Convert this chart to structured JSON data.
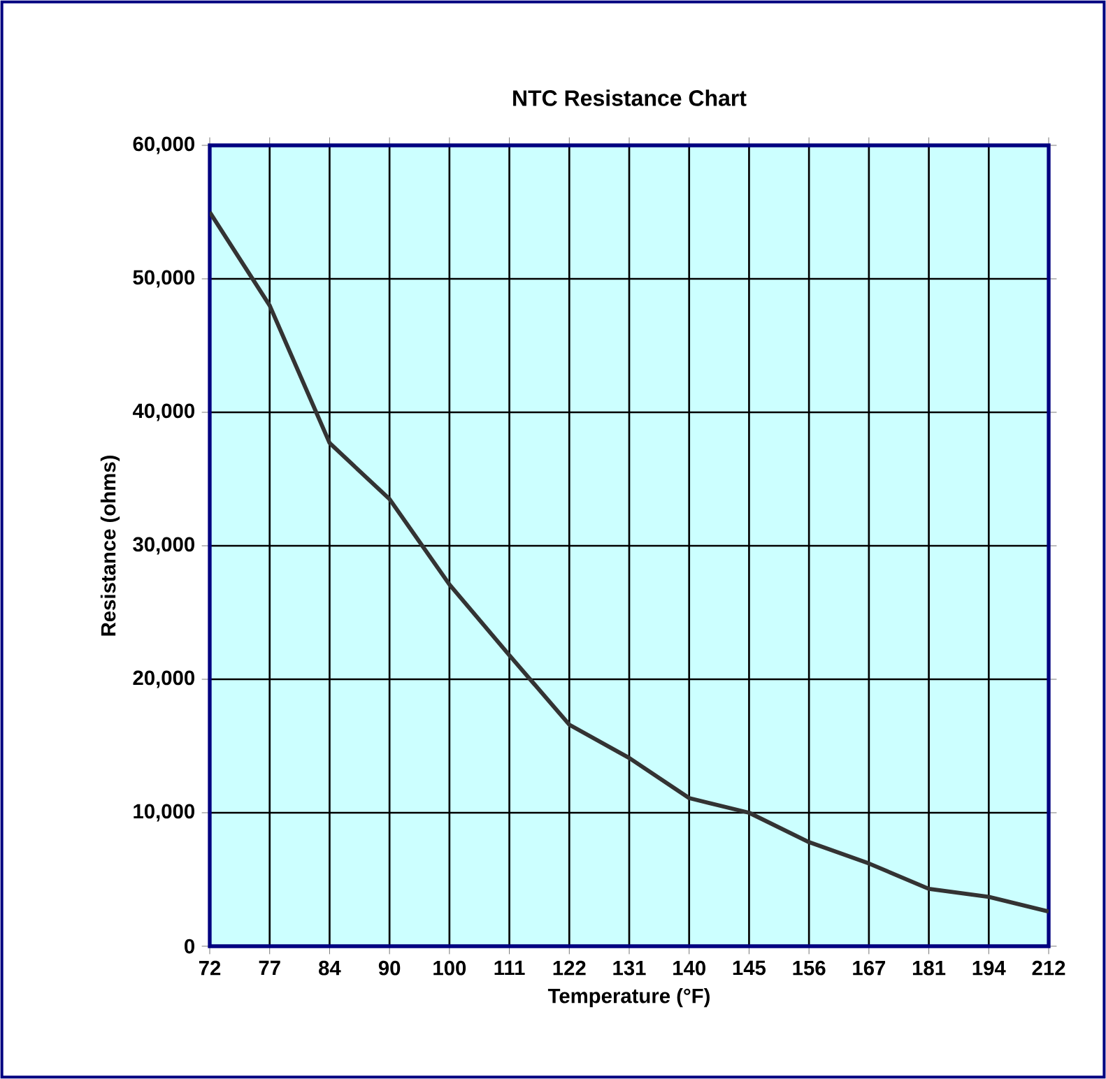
{
  "chart_data": {
    "type": "line",
    "title": "NTC Resistance Chart",
    "xlabel": "Temperature (°F)",
    "ylabel": "Resistance (ohms)",
    "categories": [
      "72",
      "77",
      "84",
      "90",
      "100",
      "111",
      "122",
      "131",
      "140",
      "145",
      "156",
      "167",
      "181",
      "194",
      "212"
    ],
    "series": [
      {
        "color": "#333333",
        "values": [
          55000,
          48000,
          37700,
          33500,
          27100,
          21800,
          16600,
          14100,
          11100,
          10000,
          7800,
          6200,
          4300,
          3700,
          2600
        ]
      }
    ],
    "ylim": [
      0,
      60000
    ],
    "yticks": [
      0,
      {
        "value": 10000,
        "label": "10,000"
      },
      {
        "value": 20000,
        "label": "20,000"
      },
      {
        "value": 30000,
        "label": "30,000"
      },
      {
        "value": 40000,
        "label": "40,000"
      },
      {
        "value": 50000,
        "label": "50,000"
      },
      {
        "value": 60000,
        "label": "60,000"
      }
    ],
    "grid": true,
    "marker": "none",
    "line_style": "solid"
  }
}
